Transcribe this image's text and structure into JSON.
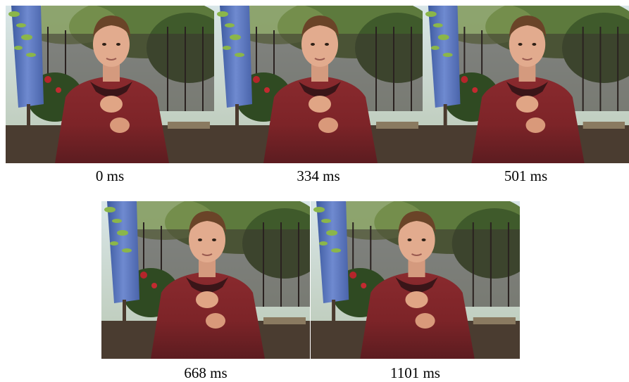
{
  "frames": [
    {
      "label": "0 ms"
    },
    {
      "label": "334 ms"
    },
    {
      "label": "501 ms"
    },
    {
      "label": "668 ms"
    },
    {
      "label": "1101 ms"
    }
  ]
}
